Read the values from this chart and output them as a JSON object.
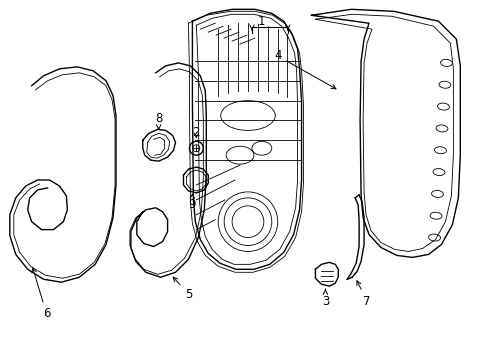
{
  "background_color": "#ffffff",
  "line_color": "#000000",
  "lw": 1.0,
  "tlw": 0.6,
  "label_fontsize": 8.5,
  "figsize": [
    4.89,
    3.6
  ],
  "dpi": 100
}
